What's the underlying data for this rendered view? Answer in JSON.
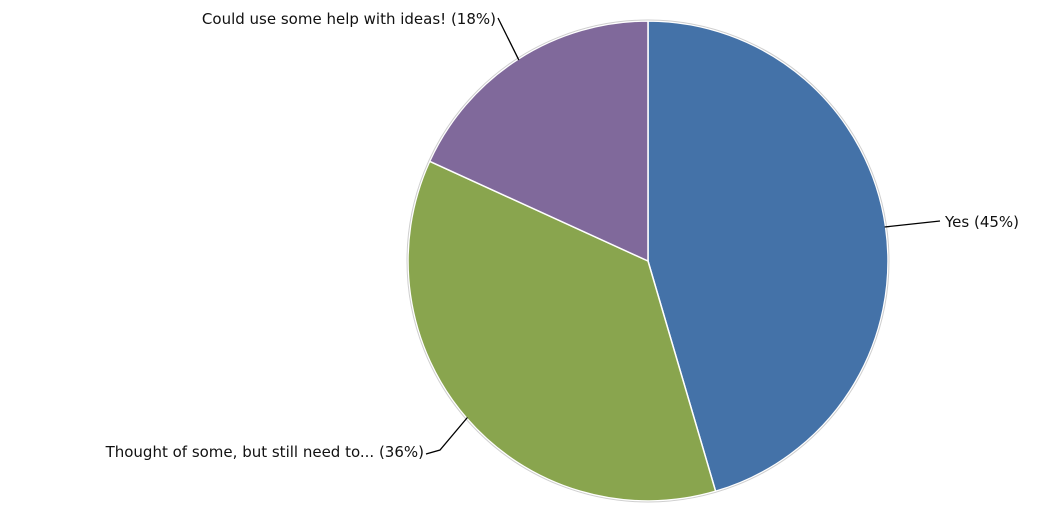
{
  "chart_data": {
    "type": "pie",
    "title": "",
    "slices": [
      {
        "label": "Yes (45%)",
        "value": 45,
        "color": "#4472a8"
      },
      {
        "label": "Thought of some, but still need to... (36%)",
        "value": 36,
        "color": "#89a54e"
      },
      {
        "label": "Could use some help with ideas! (18%)",
        "value": 18,
        "color": "#80699b"
      }
    ]
  }
}
